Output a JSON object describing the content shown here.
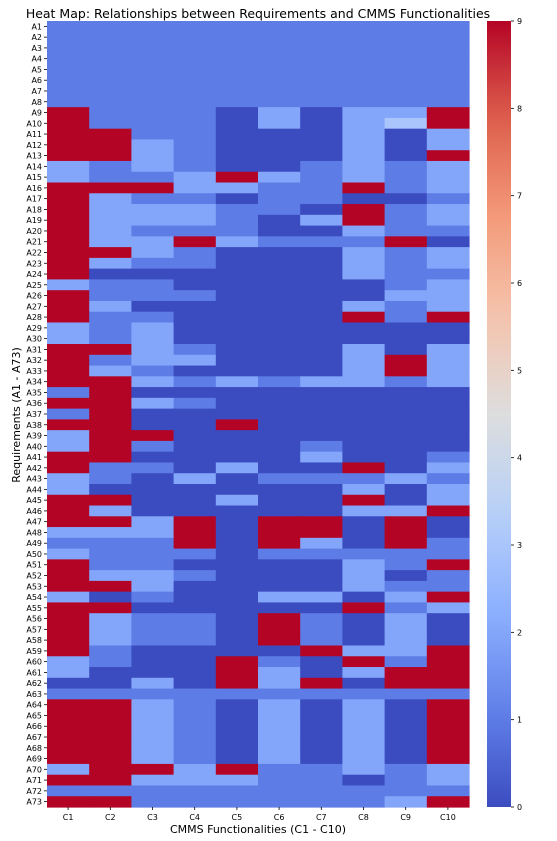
{
  "chart_data": {
    "type": "heatmap",
    "title": "Heat Map: Relationships between Requirements and CMMS Functionalities",
    "xlabel": "CMMS Functionalities (C1 - C10)",
    "ylabel": "Requirements (A1 - A73)",
    "columns": [
      "C1",
      "C2",
      "C3",
      "C4",
      "C5",
      "C6",
      "C7",
      "C8",
      "C9",
      "C10"
    ],
    "rows": [
      "A1",
      "A2",
      "A3",
      "A4",
      "A5",
      "A6",
      "A7",
      "A8",
      "A9",
      "A10",
      "A11",
      "A12",
      "A13",
      "A14",
      "A15",
      "A16",
      "A17",
      "A18",
      "A19",
      "A20",
      "A21",
      "A22",
      "A23",
      "A24",
      "A25",
      "A26",
      "A27",
      "A28",
      "A29",
      "A30",
      "A31",
      "A32",
      "A33",
      "A34",
      "A35",
      "A36",
      "A37",
      "A38",
      "A39",
      "A40",
      "A41",
      "A42",
      "A43",
      "A44",
      "A45",
      "A46",
      "A47",
      "A48",
      "A49",
      "A50",
      "A51",
      "A52",
      "A53",
      "A54",
      "A55",
      "A56",
      "A57",
      "A58",
      "A59",
      "A60",
      "A61",
      "A62",
      "A63",
      "A64",
      "A65",
      "A66",
      "A67",
      "A68",
      "A69",
      "A70",
      "A71",
      "A72",
      "A73"
    ],
    "values": [
      [
        1,
        1,
        1,
        1,
        1,
        1,
        1,
        1,
        1,
        1
      ],
      [
        1,
        1,
        1,
        1,
        1,
        1,
        1,
        1,
        1,
        1
      ],
      [
        1,
        1,
        1,
        1,
        1,
        1,
        1,
        1,
        1,
        1
      ],
      [
        1,
        1,
        1,
        1,
        1,
        1,
        1,
        1,
        1,
        1
      ],
      [
        1,
        1,
        1,
        1,
        1,
        1,
        1,
        1,
        1,
        1
      ],
      [
        1,
        1,
        1,
        1,
        1,
        1,
        1,
        1,
        1,
        1
      ],
      [
        1,
        1,
        1,
        1,
        1,
        1,
        1,
        1,
        1,
        1
      ],
      [
        1,
        1,
        1,
        1,
        1,
        1,
        1,
        1,
        1,
        1
      ],
      [
        9,
        1,
        1,
        1,
        0,
        2,
        0,
        2,
        2,
        9
      ],
      [
        9,
        1,
        1,
        1,
        0,
        2,
        0,
        2,
        3,
        9
      ],
      [
        9,
        9,
        1,
        1,
        0,
        0,
        0,
        2,
        0,
        2
      ],
      [
        9,
        9,
        2,
        1,
        0,
        0,
        0,
        2,
        0,
        2
      ],
      [
        9,
        9,
        2,
        1,
        0,
        0,
        0,
        2,
        0,
        9
      ],
      [
        2,
        1,
        2,
        1,
        0,
        0,
        1,
        2,
        1,
        2
      ],
      [
        2,
        1,
        1,
        2,
        9,
        2,
        1,
        2,
        1,
        2
      ],
      [
        9,
        9,
        9,
        2,
        2,
        1,
        1,
        9,
        1,
        2
      ],
      [
        9,
        2,
        1,
        1,
        0,
        1,
        1,
        0,
        0,
        1
      ],
      [
        9,
        2,
        2,
        2,
        1,
        1,
        0,
        9,
        1,
        2
      ],
      [
        9,
        2,
        2,
        2,
        1,
        0,
        2,
        9,
        1,
        2
      ],
      [
        9,
        2,
        1,
        1,
        1,
        0,
        0,
        2,
        1,
        1
      ],
      [
        9,
        2,
        2,
        9,
        2,
        1,
        1,
        1,
        9,
        0
      ],
      [
        9,
        9,
        2,
        1,
        0,
        0,
        0,
        2,
        1,
        2
      ],
      [
        9,
        2,
        1,
        1,
        0,
        0,
        0,
        2,
        1,
        2
      ],
      [
        9,
        0,
        0,
        0,
        0,
        0,
        0,
        2,
        1,
        1
      ],
      [
        2,
        1,
        1,
        0,
        0,
        0,
        0,
        0,
        1,
        2
      ],
      [
        9,
        1,
        1,
        1,
        0,
        0,
        0,
        0,
        2,
        2
      ],
      [
        9,
        2,
        0,
        0,
        0,
        0,
        0,
        2,
        1,
        2
      ],
      [
        9,
        1,
        1,
        0,
        0,
        0,
        0,
        9,
        1,
        9
      ],
      [
        2,
        1,
        2,
        0,
        0,
        0,
        0,
        0,
        0,
        0
      ],
      [
        2,
        1,
        2,
        0,
        0,
        0,
        0,
        0,
        0,
        0
      ],
      [
        9,
        9,
        2,
        1,
        0,
        0,
        0,
        2,
        0,
        2
      ],
      [
        9,
        1,
        2,
        2,
        0,
        0,
        0,
        2,
        9,
        2
      ],
      [
        9,
        2,
        1,
        0,
        0,
        0,
        0,
        2,
        9,
        2
      ],
      [
        9,
        9,
        2,
        1,
        2,
        1,
        2,
        2,
        1,
        2
      ],
      [
        1,
        9,
        0,
        0,
        0,
        0,
        0,
        0,
        0,
        0
      ],
      [
        9,
        9,
        2,
        1,
        0,
        0,
        0,
        0,
        0,
        0
      ],
      [
        1,
        9,
        0,
        0,
        0,
        0,
        0,
        0,
        0,
        0
      ],
      [
        9,
        9,
        0,
        0,
        9,
        0,
        0,
        0,
        0,
        0
      ],
      [
        2,
        9,
        9,
        0,
        0,
        0,
        0,
        0,
        0,
        0
      ],
      [
        2,
        9,
        1,
        0,
        0,
        0,
        1,
        0,
        0,
        0
      ],
      [
        9,
        9,
        0,
        0,
        0,
        0,
        2,
        0,
        0,
        1
      ],
      [
        9,
        1,
        1,
        0,
        2,
        0,
        0,
        9,
        0,
        2
      ],
      [
        2,
        1,
        0,
        2,
        0,
        1,
        1,
        1,
        2,
        1
      ],
      [
        2,
        0,
        0,
        0,
        0,
        0,
        0,
        2,
        0,
        2
      ],
      [
        9,
        9,
        0,
        0,
        2,
        0,
        0,
        9,
        0,
        2
      ],
      [
        9,
        2,
        0,
        0,
        0,
        0,
        0,
        2,
        2,
        9
      ],
      [
        9,
        9,
        2,
        9,
        0,
        9,
        9,
        0,
        9,
        0
      ],
      [
        2,
        2,
        2,
        9,
        0,
        9,
        9,
        0,
        9,
        0
      ],
      [
        1,
        1,
        1,
        9,
        0,
        9,
        2,
        0,
        9,
        1
      ],
      [
        2,
        1,
        1,
        1,
        0,
        1,
        1,
        1,
        1,
        1
      ],
      [
        9,
        1,
        1,
        0,
        0,
        0,
        0,
        2,
        1,
        9
      ],
      [
        9,
        2,
        2,
        1,
        0,
        0,
        0,
        2,
        0,
        1
      ],
      [
        9,
        9,
        2,
        0,
        0,
        0,
        0,
        2,
        1,
        1
      ],
      [
        2,
        0,
        1,
        0,
        0,
        2,
        2,
        0,
        2,
        9
      ],
      [
        9,
        9,
        0,
        0,
        0,
        0,
        0,
        9,
        1,
        2
      ],
      [
        9,
        2,
        1,
        1,
        0,
        9,
        1,
        0,
        2,
        0
      ],
      [
        9,
        2,
        1,
        1,
        0,
        9,
        1,
        0,
        2,
        0
      ],
      [
        9,
        2,
        1,
        1,
        0,
        9,
        1,
        0,
        2,
        0
      ],
      [
        9,
        1,
        0,
        0,
        0,
        0,
        9,
        2,
        2,
        9
      ],
      [
        2,
        1,
        0,
        0,
        9,
        1,
        0,
        9,
        1,
        9
      ],
      [
        2,
        0,
        0,
        0,
        9,
        2,
        0,
        2,
        9,
        9
      ],
      [
        0,
        0,
        2,
        0,
        9,
        2,
        9,
        0,
        9,
        9
      ],
      [
        1,
        1,
        1,
        1,
        1,
        1,
        1,
        1,
        1,
        1
      ],
      [
        9,
        9,
        2,
        1,
        0,
        2,
        0,
        2,
        0,
        9
      ],
      [
        9,
        9,
        2,
        1,
        0,
        2,
        0,
        2,
        0,
        9
      ],
      [
        9,
        9,
        2,
        1,
        0,
        2,
        0,
        2,
        0,
        9
      ],
      [
        9,
        9,
        2,
        1,
        0,
        2,
        0,
        2,
        0,
        9
      ],
      [
        9,
        9,
        2,
        1,
        0,
        2,
        0,
        2,
        0,
        9
      ],
      [
        9,
        9,
        2,
        1,
        0,
        2,
        0,
        2,
        0,
        9
      ],
      [
        2,
        9,
        9,
        2,
        9,
        1,
        1,
        2,
        1,
        2
      ],
      [
        9,
        9,
        2,
        2,
        2,
        1,
        1,
        0,
        1,
        2
      ],
      [
        1,
        1,
        1,
        1,
        1,
        1,
        1,
        1,
        1,
        1
      ],
      [
        9,
        9,
        1,
        1,
        1,
        1,
        1,
        1,
        2,
        9
      ]
    ],
    "colorbar": {
      "min": 0,
      "max": 9,
      "ticks": [
        0,
        1,
        2,
        3,
        4,
        5,
        6,
        7,
        8,
        9
      ],
      "colormap": "coolwarm"
    },
    "grid": false,
    "legend": "colorbar-right"
  }
}
